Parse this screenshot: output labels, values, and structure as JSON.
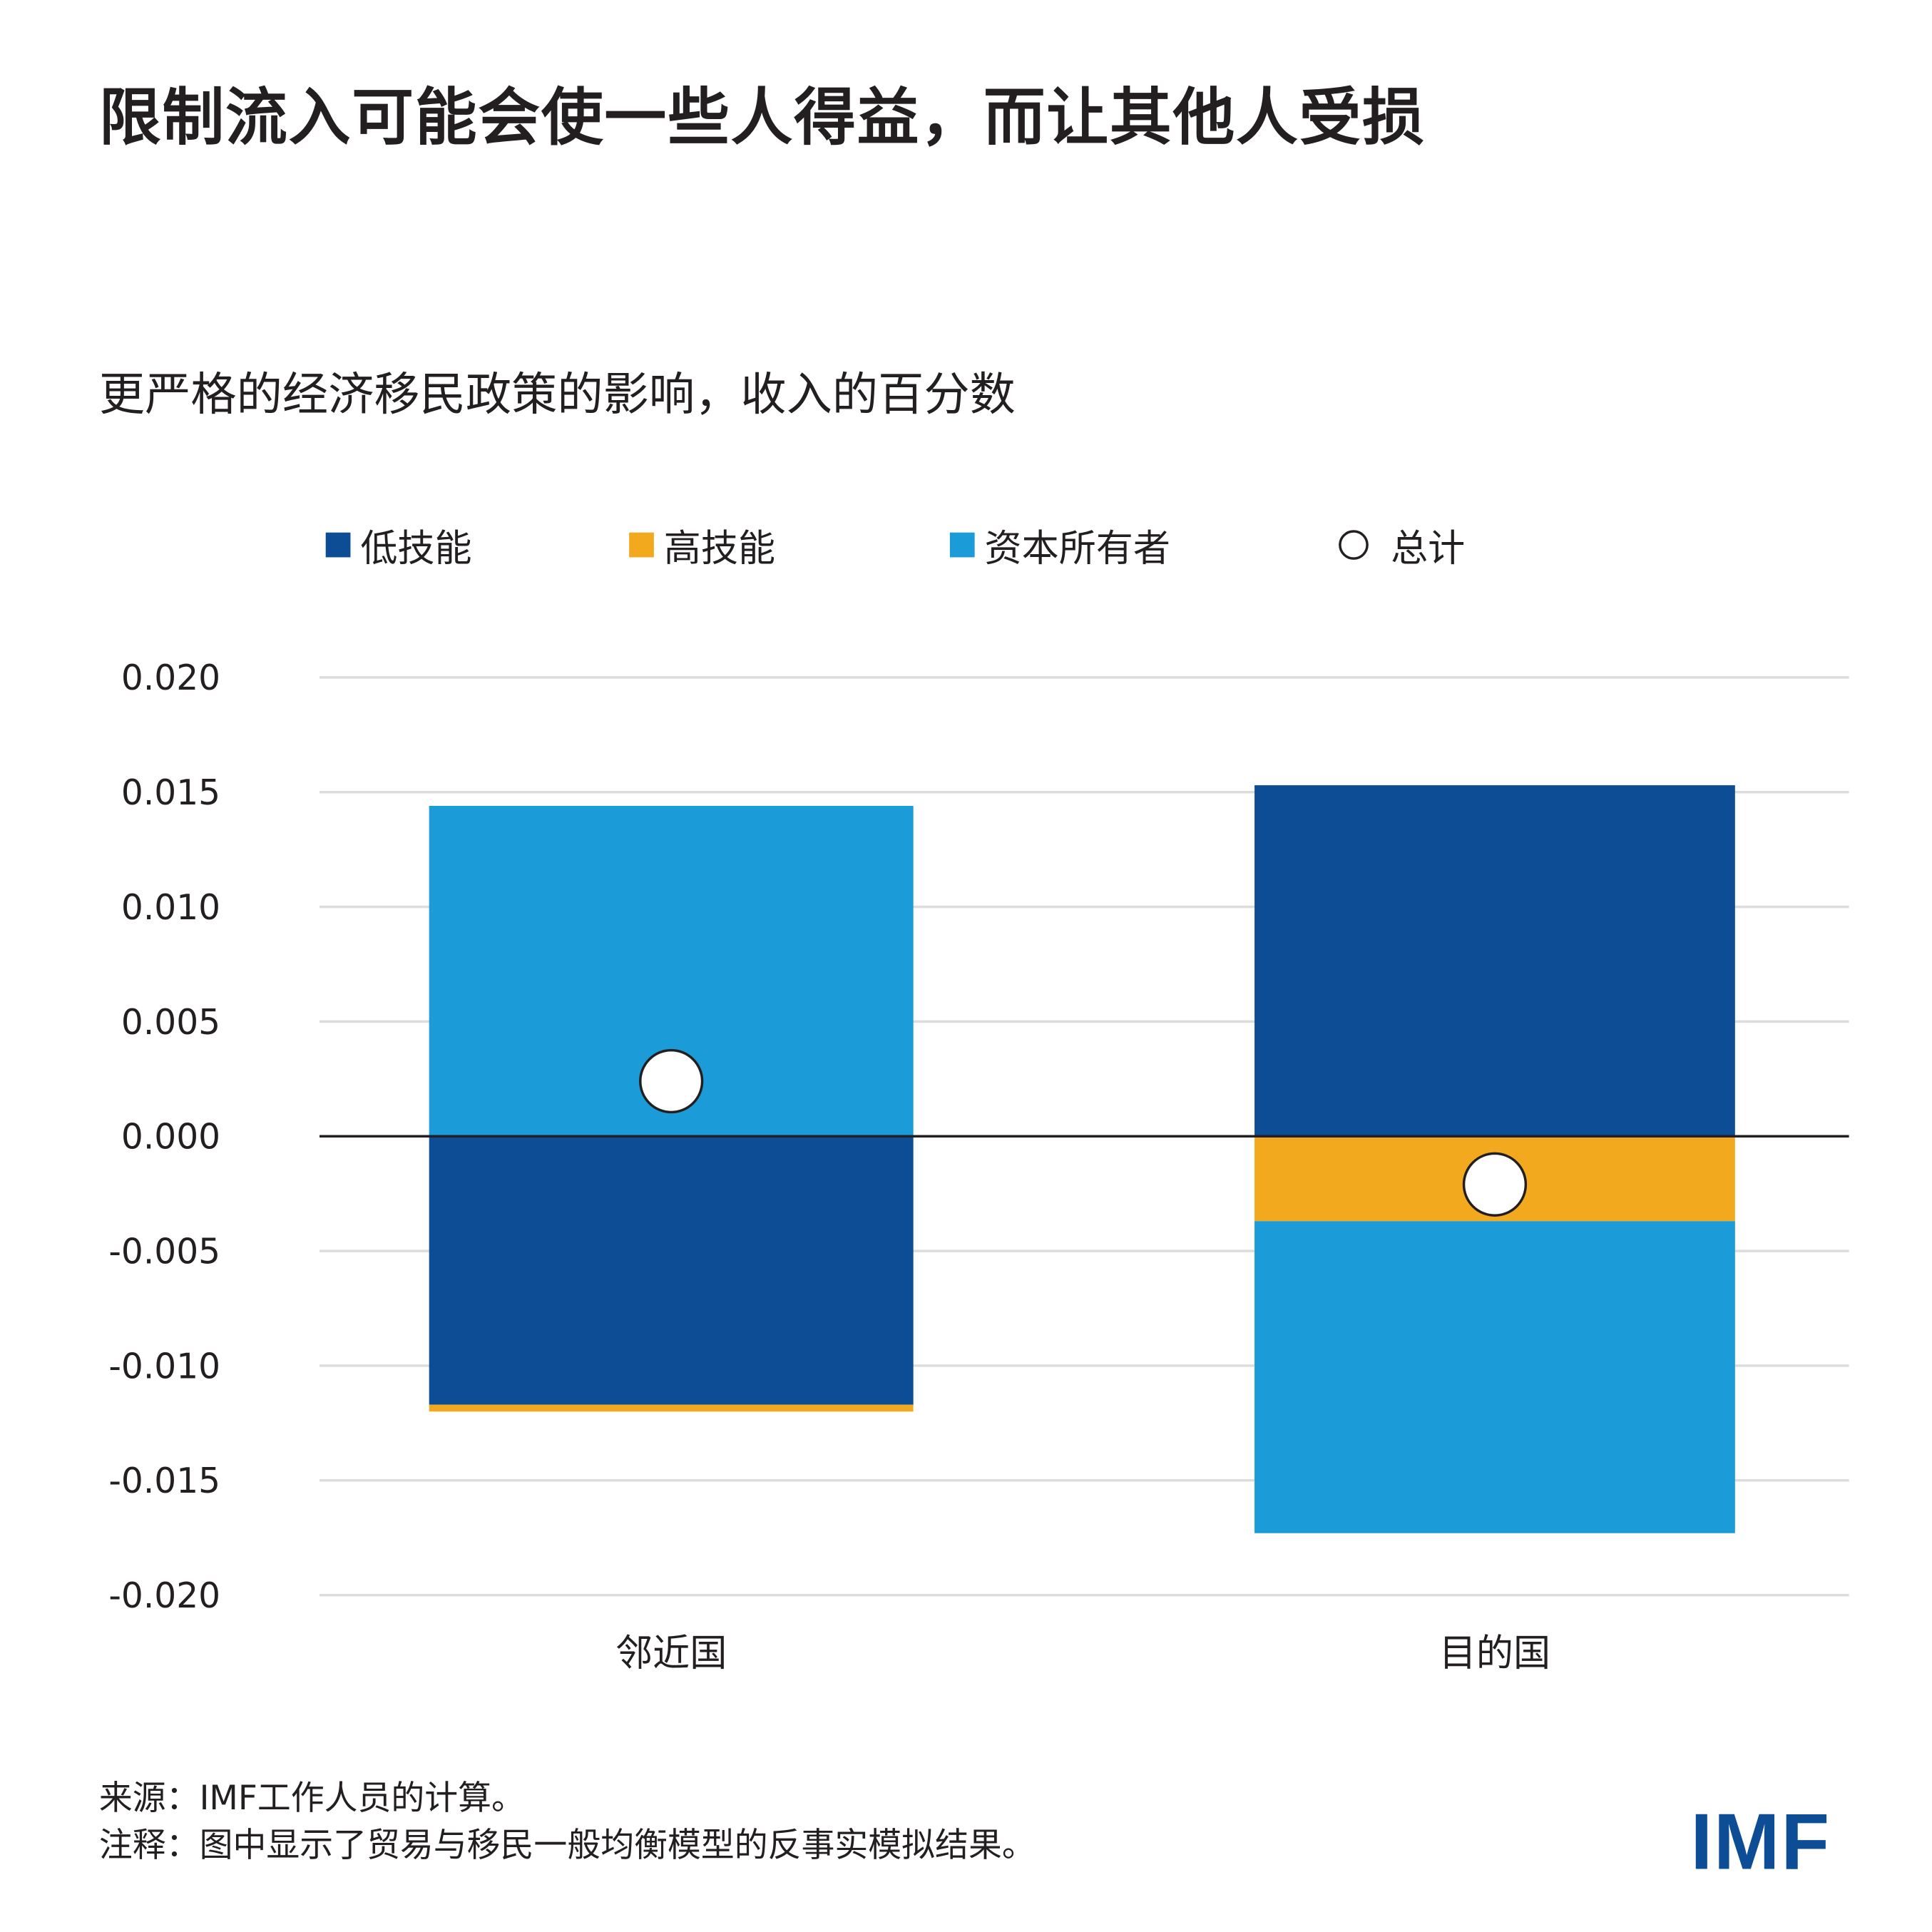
{
  "title": "限制流入可能会使一些人得益，而让其他人受损",
  "chart_data": {
    "type": "bar",
    "stacked": true,
    "title": "更严格的经济移民政策的影响，收入的百分数",
    "categories": [
      "邻近国",
      "目的国"
    ],
    "series": [
      {
        "name": "低技能",
        "color": "#0d4d96",
        "values": [
          -0.0117,
          0.0153
        ]
      },
      {
        "name": "高技能",
        "color": "#f2a91e",
        "values": [
          -0.0003,
          -0.0037
        ]
      },
      {
        "name": "资本所有者",
        "color": "#1b9bd7",
        "values": [
          0.0144,
          -0.0136
        ]
      }
    ],
    "total": {
      "name": "总计",
      "marker": "circle",
      "values": [
        0.0024,
        -0.0021
      ]
    },
    "ylim": [
      -0.02,
      0.02
    ],
    "yticks": [
      "0.020",
      "0.015",
      "0.010",
      "0.005",
      "0.000",
      "-0.005",
      "-0.010",
      "-0.015",
      "-0.020"
    ],
    "grid": true,
    "legend_position": "top"
  },
  "footer": {
    "source": "来源：IMF工作人员的计算。",
    "note": "注释：图中显示了贸易与移民一般均衡模型的反事实模拟结果。"
  },
  "logo": "IMF"
}
